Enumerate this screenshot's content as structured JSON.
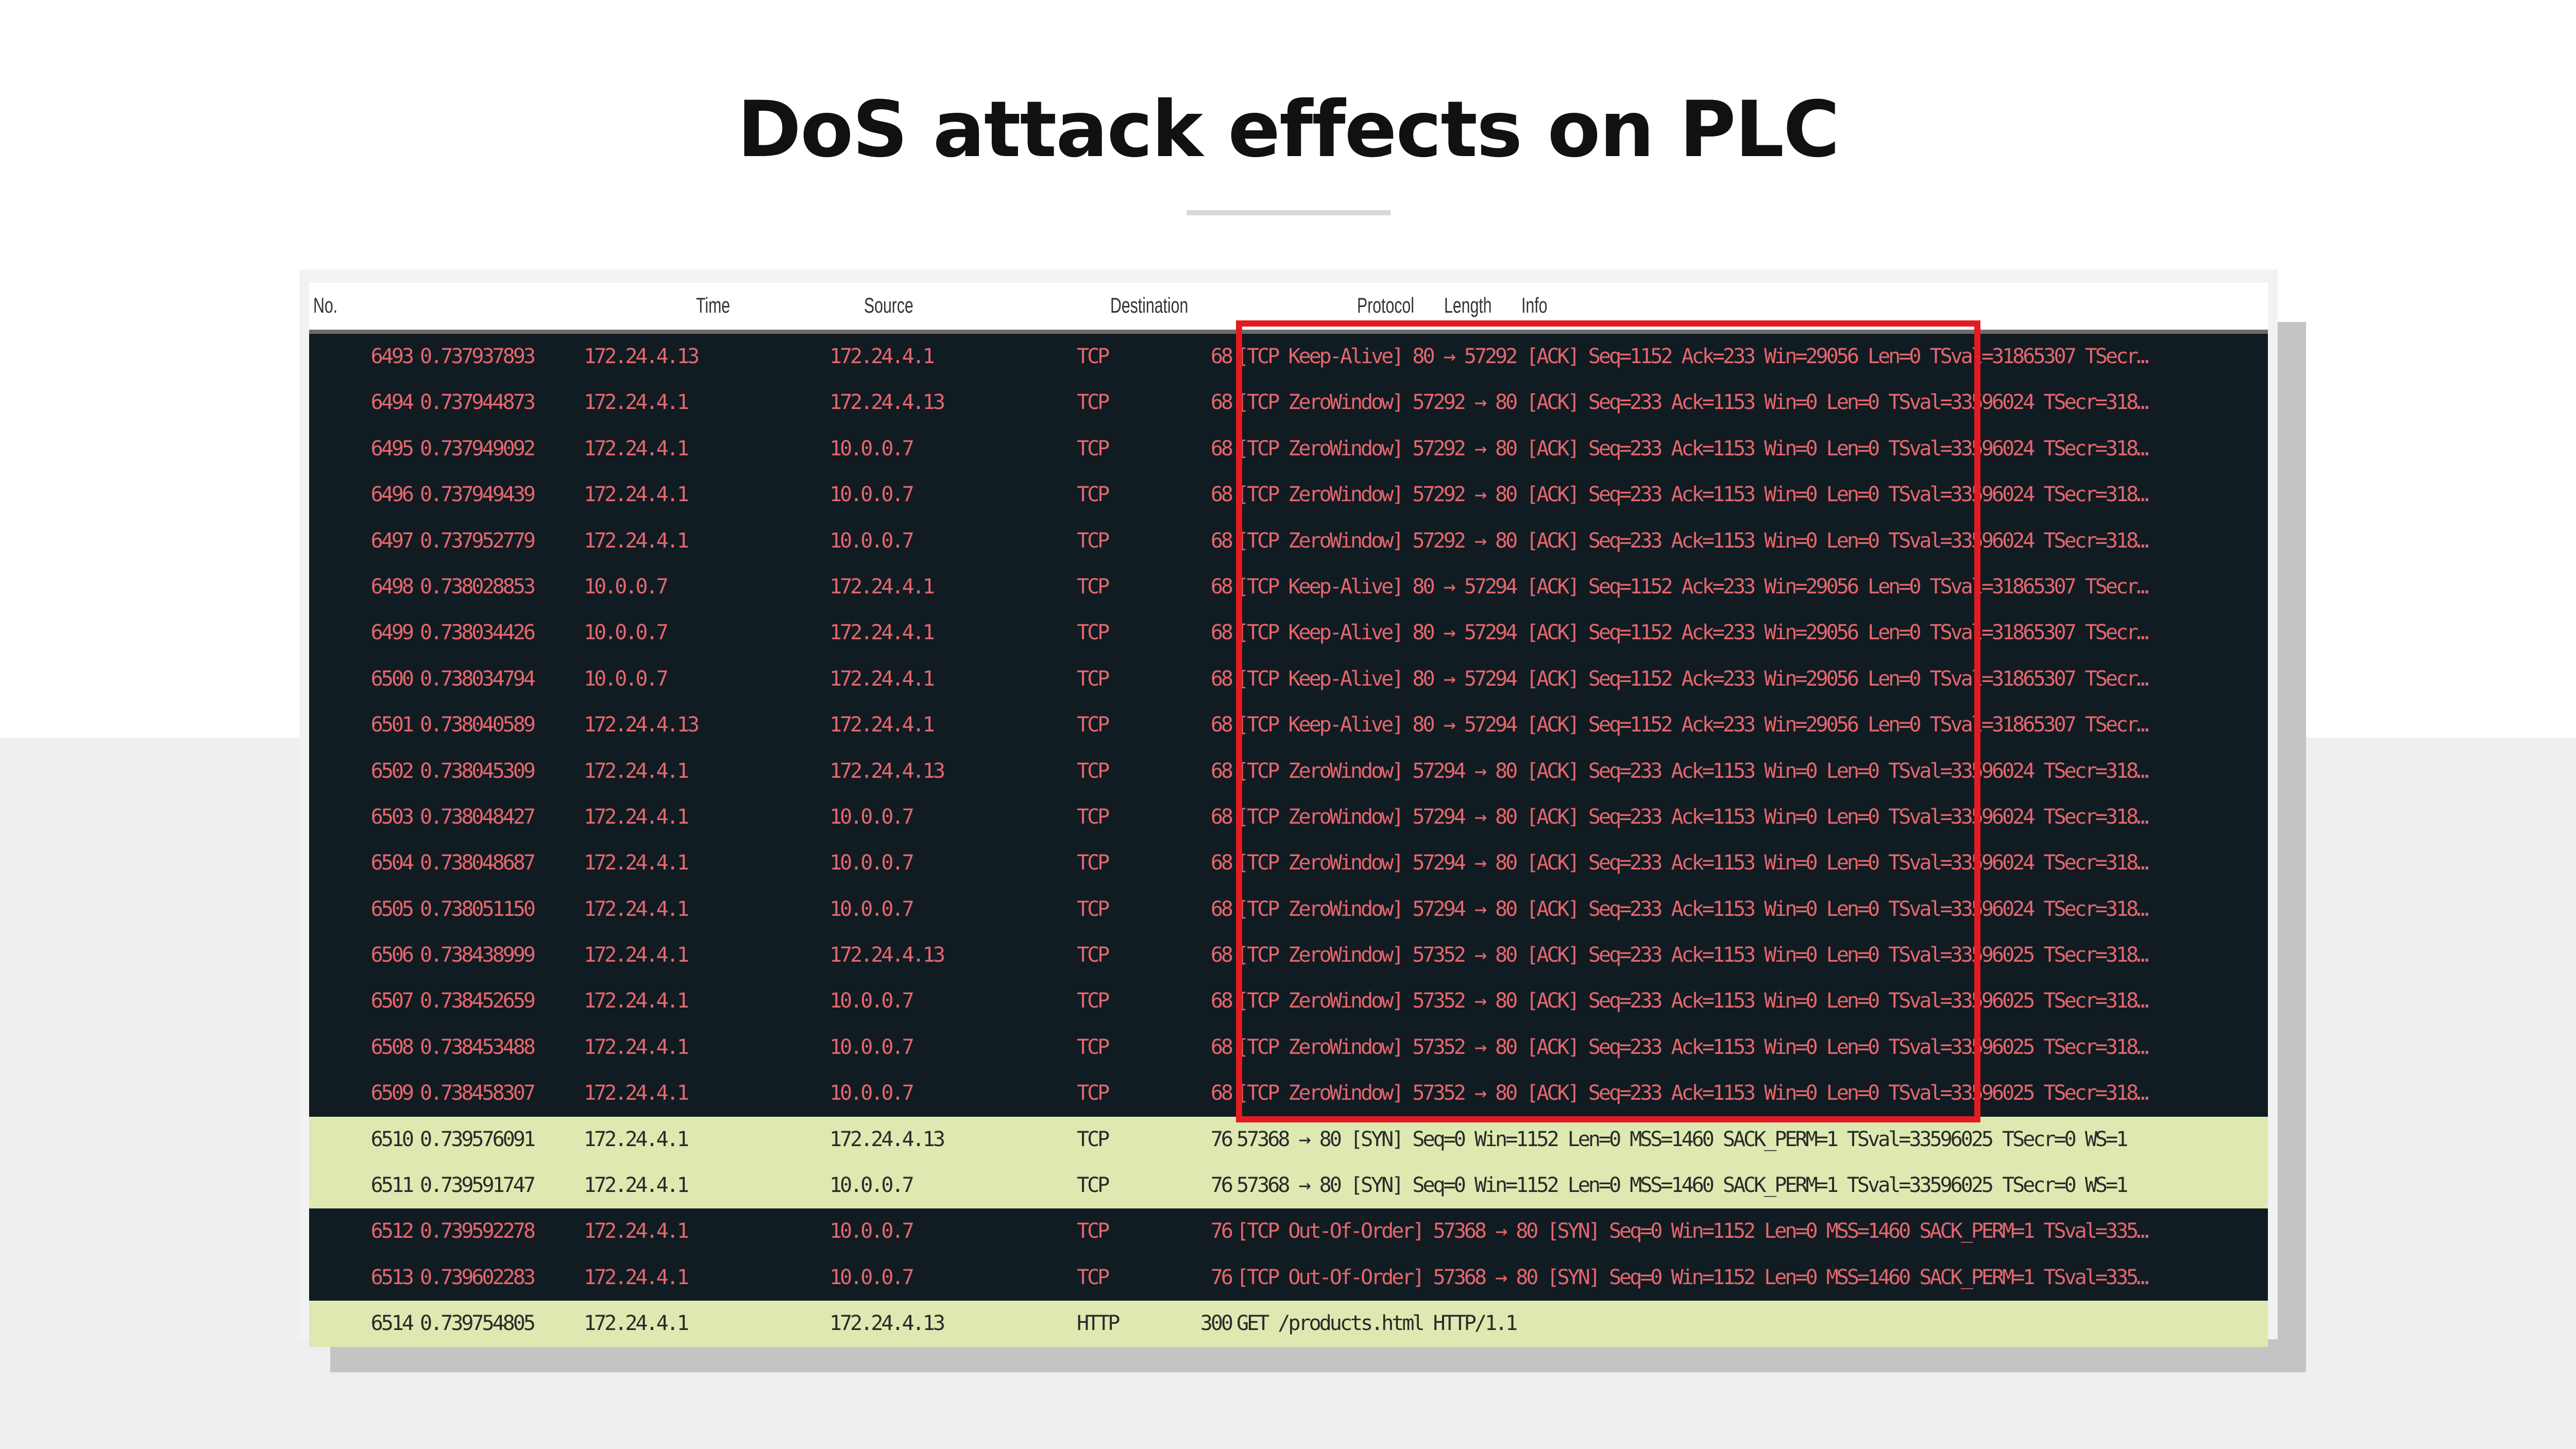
{
  "slide": {
    "title": "DoS attack effects on PLC"
  },
  "colors": {
    "dark_row_bg": "#111b22",
    "dark_row_text": "#e4676d",
    "green_row_bg": "#dde9b0",
    "highlight_box": "#e31b23"
  },
  "table": {
    "columns": [
      "No.",
      "Time",
      "Source",
      "Destination",
      "Protocol",
      "Length",
      "Info"
    ],
    "rows": [
      {
        "style": "dark",
        "cells": [
          "6493",
          "0.737937893",
          "172.24.4.13",
          "172.24.4.1",
          "TCP",
          "68",
          "[TCP Keep-Alive] 80 → 57292 [ACK] Seq=1152 Ack=233 Win=29056 Len=0 TSval=31865307 TSecr…"
        ]
      },
      {
        "style": "dark",
        "cells": [
          "6494",
          "0.737944873",
          "172.24.4.1",
          "172.24.4.13",
          "TCP",
          "68",
          "[TCP ZeroWindow] 57292 → 80 [ACK] Seq=233 Ack=1153 Win=0 Len=0 TSval=33596024 TSecr=318…"
        ]
      },
      {
        "style": "dark",
        "cells": [
          "6495",
          "0.737949092",
          "172.24.4.1",
          "10.0.0.7",
          "TCP",
          "68",
          "[TCP ZeroWindow] 57292 → 80 [ACK] Seq=233 Ack=1153 Win=0 Len=0 TSval=33596024 TSecr=318…"
        ]
      },
      {
        "style": "dark",
        "cells": [
          "6496",
          "0.737949439",
          "172.24.4.1",
          "10.0.0.7",
          "TCP",
          "68",
          "[TCP ZeroWindow] 57292 → 80 [ACK] Seq=233 Ack=1153 Win=0 Len=0 TSval=33596024 TSecr=318…"
        ]
      },
      {
        "style": "dark",
        "cells": [
          "6497",
          "0.737952779",
          "172.24.4.1",
          "10.0.0.7",
          "TCP",
          "68",
          "[TCP ZeroWindow] 57292 → 80 [ACK] Seq=233 Ack=1153 Win=0 Len=0 TSval=33596024 TSecr=318…"
        ]
      },
      {
        "style": "dark",
        "cells": [
          "6498",
          "0.738028853",
          "10.0.0.7",
          "172.24.4.1",
          "TCP",
          "68",
          "[TCP Keep-Alive] 80 → 57294 [ACK] Seq=1152 Ack=233 Win=29056 Len=0 TSval=31865307 TSecr…"
        ]
      },
      {
        "style": "dark",
        "cells": [
          "6499",
          "0.738034426",
          "10.0.0.7",
          "172.24.4.1",
          "TCP",
          "68",
          "[TCP Keep-Alive] 80 → 57294 [ACK] Seq=1152 Ack=233 Win=29056 Len=0 TSval=31865307 TSecr…"
        ]
      },
      {
        "style": "dark",
        "cells": [
          "6500",
          "0.738034794",
          "10.0.0.7",
          "172.24.4.1",
          "TCP",
          "68",
          "[TCP Keep-Alive] 80 → 57294 [ACK] Seq=1152 Ack=233 Win=29056 Len=0 TSval=31865307 TSecr…"
        ]
      },
      {
        "style": "dark",
        "cells": [
          "6501",
          "0.738040589",
          "172.24.4.13",
          "172.24.4.1",
          "TCP",
          "68",
          "[TCP Keep-Alive] 80 → 57294 [ACK] Seq=1152 Ack=233 Win=29056 Len=0 TSval=31865307 TSecr…"
        ]
      },
      {
        "style": "dark",
        "cells": [
          "6502",
          "0.738045309",
          "172.24.4.1",
          "172.24.4.13",
          "TCP",
          "68",
          "[TCP ZeroWindow] 57294 → 80 [ACK] Seq=233 Ack=1153 Win=0 Len=0 TSval=33596024 TSecr=318…"
        ]
      },
      {
        "style": "dark",
        "cells": [
          "6503",
          "0.738048427",
          "172.24.4.1",
          "10.0.0.7",
          "TCP",
          "68",
          "[TCP ZeroWindow] 57294 → 80 [ACK] Seq=233 Ack=1153 Win=0 Len=0 TSval=33596024 TSecr=318…"
        ]
      },
      {
        "style": "dark",
        "cells": [
          "6504",
          "0.738048687",
          "172.24.4.1",
          "10.0.0.7",
          "TCP",
          "68",
          "[TCP ZeroWindow] 57294 → 80 [ACK] Seq=233 Ack=1153 Win=0 Len=0 TSval=33596024 TSecr=318…"
        ]
      },
      {
        "style": "dark",
        "cells": [
          "6505",
          "0.738051150",
          "172.24.4.1",
          "10.0.0.7",
          "TCP",
          "68",
          "[TCP ZeroWindow] 57294 → 80 [ACK] Seq=233 Ack=1153 Win=0 Len=0 TSval=33596024 TSecr=318…"
        ]
      },
      {
        "style": "dark",
        "cells": [
          "6506",
          "0.738438999",
          "172.24.4.1",
          "172.24.4.13",
          "TCP",
          "68",
          "[TCP ZeroWindow] 57352 → 80 [ACK] Seq=233 Ack=1153 Win=0 Len=0 TSval=33596025 TSecr=318…"
        ]
      },
      {
        "style": "dark",
        "cells": [
          "6507",
          "0.738452659",
          "172.24.4.1",
          "10.0.0.7",
          "TCP",
          "68",
          "[TCP ZeroWindow] 57352 → 80 [ACK] Seq=233 Ack=1153 Win=0 Len=0 TSval=33596025 TSecr=318…"
        ]
      },
      {
        "style": "dark",
        "cells": [
          "6508",
          "0.738453488",
          "172.24.4.1",
          "10.0.0.7",
          "TCP",
          "68",
          "[TCP ZeroWindow] 57352 → 80 [ACK] Seq=233 Ack=1153 Win=0 Len=0 TSval=33596025 TSecr=318…"
        ]
      },
      {
        "style": "dark",
        "cells": [
          "6509",
          "0.738458307",
          "172.24.4.1",
          "10.0.0.7",
          "TCP",
          "68",
          "[TCP ZeroWindow] 57352 → 80 [ACK] Seq=233 Ack=1153 Win=0 Len=0 TSval=33596025 TSecr=318…"
        ]
      },
      {
        "style": "green",
        "cells": [
          "6510",
          "0.739576091",
          "172.24.4.1",
          "172.24.4.13",
          "TCP",
          "76",
          "57368 → 80 [SYN] Seq=0 Win=1152 Len=0 MSS=1460 SACK_PERM=1 TSval=33596025 TSecr=0 WS=1"
        ]
      },
      {
        "style": "green",
        "cells": [
          "6511",
          "0.739591747",
          "172.24.4.1",
          "10.0.0.7",
          "TCP",
          "76",
          "57368 → 80 [SYN] Seq=0 Win=1152 Len=0 MSS=1460 SACK_PERM=1 TSval=33596025 TSecr=0 WS=1"
        ]
      },
      {
        "style": "dark",
        "cells": [
          "6512",
          "0.739592278",
          "172.24.4.1",
          "10.0.0.7",
          "TCP",
          "76",
          "[TCP Out-Of-Order] 57368 → 80 [SYN] Seq=0 Win=1152 Len=0 MSS=1460 SACK_PERM=1 TSval=335…"
        ]
      },
      {
        "style": "dark",
        "cells": [
          "6513",
          "0.739602283",
          "172.24.4.1",
          "10.0.0.7",
          "TCP",
          "76",
          "[TCP Out-Of-Order] 57368 → 80 [SYN] Seq=0 Win=1152 Len=0 MSS=1460 SACK_PERM=1 TSval=335…"
        ]
      },
      {
        "style": "green",
        "cells": [
          "6514",
          "0.739754805",
          "172.24.4.1",
          "172.24.4.13",
          "HTTP",
          "300",
          "GET /products.html HTTP/1.1"
        ]
      }
    ]
  }
}
